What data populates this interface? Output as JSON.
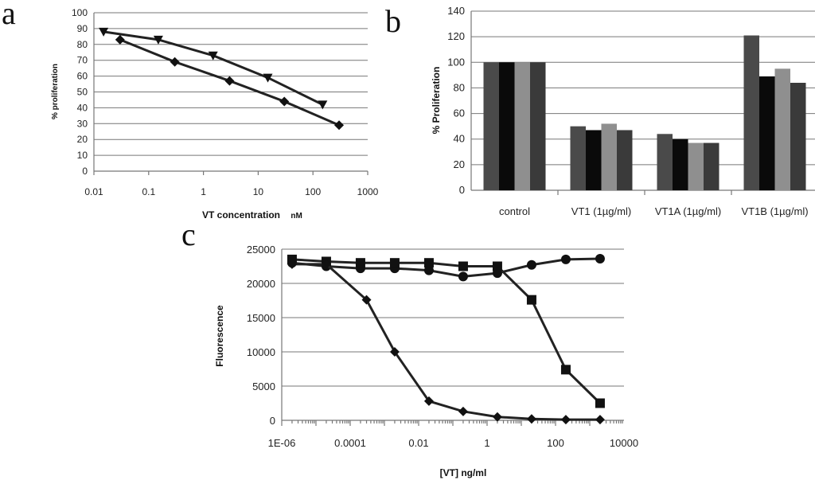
{
  "panel_labels": {
    "a": "a",
    "b": "b",
    "c": "c"
  },
  "chart_data": [
    {
      "id": "a",
      "type": "line",
      "xscale": "log",
      "xlim": [
        0.01,
        1000
      ],
      "ylim": [
        0,
        100
      ],
      "xticks": [
        "0.01",
        "0.1",
        "1",
        "10",
        "100",
        "1000"
      ],
      "yticks": [
        "0",
        "10",
        "20",
        "30",
        "40",
        "50",
        "60",
        "70",
        "80",
        "90",
        "100"
      ],
      "xlabel": "VT concentration",
      "xlabel_unit": "nM",
      "ylabel": "% proliferation",
      "series": [
        {
          "name": "series-triangle",
          "marker": "triangle-down",
          "x": [
            0.015,
            0.15,
            1.5,
            15,
            150
          ],
          "y": [
            88,
            83,
            73,
            59,
            42
          ]
        },
        {
          "name": "series-diamond",
          "marker": "diamond",
          "x": [
            0.03,
            0.3,
            3,
            30,
            300
          ],
          "y": [
            83,
            69,
            57,
            44,
            29
          ]
        }
      ]
    },
    {
      "id": "b",
      "type": "bar",
      "ylim": [
        0,
        140
      ],
      "yticks": [
        "0",
        "20",
        "40",
        "60",
        "80",
        "100",
        "120",
        "140"
      ],
      "ylabel": "% Proliferation",
      "categories": [
        "control",
        "VT1 (1µg/ml)",
        "VT1A (1µg/ml)",
        "VT1B (1µg/ml)"
      ],
      "series": [
        {
          "name": "series-1",
          "color": "#4a4a4a",
          "values": [
            100,
            50,
            44,
            121
          ]
        },
        {
          "name": "series-2",
          "color": "#0a0a0a",
          "values": [
            100,
            47,
            40,
            89
          ]
        },
        {
          "name": "series-3",
          "color": "#8f8f8f",
          "values": [
            100,
            52,
            37,
            95
          ]
        },
        {
          "name": "series-4",
          "color": "#3a3a3a",
          "values": [
            100,
            47,
            37,
            84
          ]
        }
      ]
    },
    {
      "id": "c",
      "type": "line",
      "xscale": "log",
      "xlim": [
        1e-06,
        10000
      ],
      "ylim": [
        0,
        25000
      ],
      "xticks": [
        "1E-06",
        "0.0001",
        "0.01",
        "1",
        "100",
        "10000"
      ],
      "yticks": [
        "0",
        "5000",
        "10000",
        "15000",
        "20000",
        "25000"
      ],
      "xlabel": "[VT] ng/ml",
      "ylabel": "Fluorescence",
      "series": [
        {
          "name": "series-circle",
          "marker": "circle",
          "x": [
            2e-06,
            2e-05,
            0.0002,
            0.002,
            0.02,
            0.2,
            2,
            20,
            200,
            2000
          ],
          "y": [
            23000,
            22500,
            22200,
            22200,
            21900,
            21000,
            21500,
            22700,
            23500,
            23600
          ]
        },
        {
          "name": "series-square",
          "marker": "square",
          "x": [
            2e-06,
            2e-05,
            0.0002,
            0.002,
            0.02,
            0.2,
            2,
            20,
            200,
            2000
          ],
          "y": [
            23500,
            23200,
            23000,
            23000,
            23000,
            22500,
            22500,
            17600,
            7400,
            2500
          ]
        },
        {
          "name": "series-diamond",
          "marker": "diamond",
          "x": [
            2e-06,
            2e-05,
            0.0003,
            0.002,
            0.02,
            0.2,
            2,
            20,
            200,
            2000
          ],
          "y": [
            22800,
            22800,
            17600,
            10000,
            2800,
            1300,
            500,
            200,
            100,
            100
          ]
        }
      ]
    }
  ]
}
